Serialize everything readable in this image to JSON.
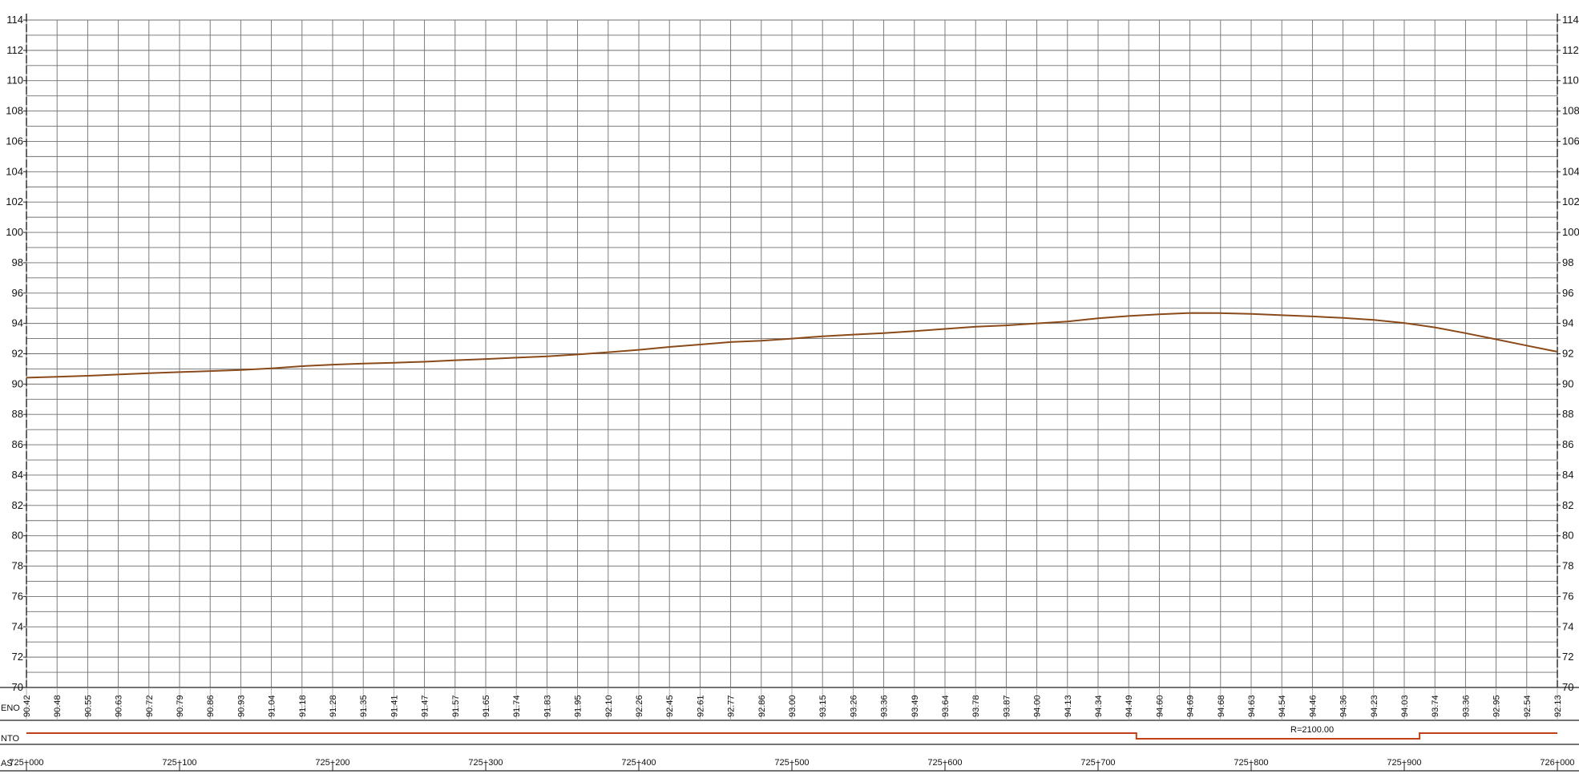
{
  "chart_data": {
    "type": "line",
    "title": "",
    "xlabel": "",
    "ylabel": "",
    "ylim": [
      70,
      114
    ],
    "y_ticks": [
      70,
      72,
      74,
      76,
      78,
      80,
      82,
      84,
      86,
      88,
      90,
      92,
      94,
      96,
      98,
      100,
      102,
      104,
      106,
      108,
      110,
      112,
      114
    ],
    "grid": true,
    "line_color": "#8a4a1a",
    "alignment_color": "#c0401a",
    "x_ticks": [
      "725+000",
      "725+100",
      "725+200",
      "725+300",
      "725+400",
      "725+500",
      "725+600",
      "725+700",
      "725+800",
      "725+900",
      "726+000"
    ],
    "row_labels": {
      "terrain": "ENO",
      "alignment": "NTO",
      "stations": "AS"
    },
    "alignment_annotation": "R=2100.00",
    "elevations": [
      "90.42",
      "90.48",
      "90.55",
      "90.63",
      "90.72",
      "90.79",
      "90.86",
      "90.93",
      "91.04",
      "91.18",
      "91.28",
      "91.35",
      "91.41",
      "91.47",
      "91.57",
      "91.65",
      "91.74",
      "91.83",
      "91.95",
      "92.10",
      "92.26",
      "92.45",
      "92.61",
      "92.77",
      "92.86",
      "93.00",
      "93.15",
      "93.26",
      "93.36",
      "93.49",
      "93.64",
      "93.78",
      "93.87",
      "94.00",
      "94.13",
      "94.34",
      "94.49",
      "94.60",
      "94.69",
      "94.68",
      "94.63",
      "94.54",
      "94.46",
      "94.36",
      "94.23",
      "94.03",
      "93.74",
      "93.36",
      "92.95",
      "92.54",
      "92.13"
    ],
    "series": [
      {
        "values": [
          [
            0,
            90.42
          ],
          [
            20,
            90.48
          ],
          [
            40,
            90.55
          ],
          [
            60,
            90.63
          ],
          [
            80,
            90.72
          ],
          [
            100,
            90.79
          ],
          [
            120,
            90.86
          ],
          [
            140,
            90.93
          ],
          [
            160,
            91.04
          ],
          [
            180,
            91.18
          ],
          [
            200,
            91.28
          ],
          [
            220,
            91.35
          ],
          [
            240,
            91.41
          ],
          [
            260,
            91.47
          ],
          [
            280,
            91.57
          ],
          [
            300,
            91.65
          ],
          [
            320,
            91.74
          ],
          [
            340,
            91.83
          ],
          [
            360,
            91.95
          ],
          [
            380,
            92.1
          ],
          [
            400,
            92.26
          ],
          [
            420,
            92.45
          ],
          [
            440,
            92.61
          ],
          [
            460,
            92.77
          ],
          [
            480,
            92.86
          ],
          [
            500,
            93.0
          ],
          [
            520,
            93.15
          ],
          [
            540,
            93.26
          ],
          [
            560,
            93.36
          ],
          [
            580,
            93.49
          ],
          [
            600,
            93.64
          ],
          [
            620,
            93.78
          ],
          [
            640,
            93.87
          ],
          [
            660,
            94.0
          ],
          [
            680,
            94.13
          ],
          [
            700,
            94.34
          ],
          [
            720,
            94.49
          ],
          [
            740,
            94.6
          ],
          [
            760,
            94.69
          ],
          [
            780,
            94.68
          ],
          [
            800,
            94.63
          ],
          [
            820,
            94.54
          ],
          [
            840,
            94.46
          ],
          [
            860,
            94.36
          ],
          [
            880,
            94.23
          ],
          [
            900,
            94.03
          ],
          [
            920,
            93.74
          ],
          [
            940,
            93.36
          ],
          [
            960,
            92.95
          ],
          [
            980,
            92.54
          ],
          [
            1000,
            92.13
          ]
        ]
      }
    ],
    "alignment_segments": [
      {
        "from": 0,
        "to": 725,
        "level": "straight"
      },
      {
        "from": 725,
        "to": 910,
        "level": "curve"
      },
      {
        "from": 910,
        "to": 1000,
        "level": "straight"
      }
    ]
  }
}
